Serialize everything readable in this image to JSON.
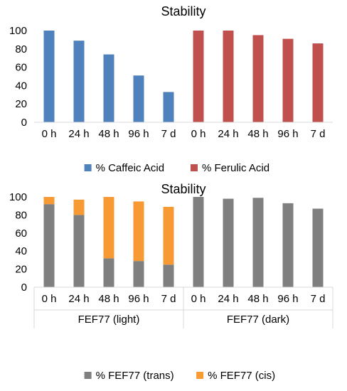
{
  "chart_data": [
    {
      "type": "bar",
      "title": "Stability",
      "categories": [
        "0 h",
        "24 h",
        "48 h",
        "96 h",
        "7 d",
        "0 h",
        "24 h",
        "48 h",
        "96 h",
        "7 d"
      ],
      "series": [
        {
          "name": "% Caffeic Acid",
          "color": "#4f81bd",
          "values": [
            100,
            89,
            74,
            51,
            33,
            null,
            null,
            null,
            null,
            null
          ]
        },
        {
          "name": "% Ferulic Acid",
          "color": "#c0504d",
          "values": [
            null,
            null,
            null,
            null,
            null,
            100,
            100,
            95,
            91,
            86
          ]
        }
      ],
      "ylim": [
        0,
        100
      ],
      "yticks": [
        "0",
        "20",
        "40",
        "60",
        "80",
        "100"
      ],
      "grid": false,
      "legend": "bottom"
    },
    {
      "type": "bar",
      "stacked": true,
      "title": "Stability",
      "categories": [
        "0 h",
        "24 h",
        "48 h",
        "96 h",
        "7 d",
        "0 h",
        "24 h",
        "48 h",
        "96 h",
        "7 d"
      ],
      "groups": [
        {
          "label": "FEF77 (light)",
          "count": 5
        },
        {
          "label": "FEF77 (dark)",
          "count": 5
        }
      ],
      "series": [
        {
          "name": "% FEF77 (trans)",
          "color": "#7f7f7f",
          "values": [
            92,
            80,
            32,
            29,
            25,
            100,
            98,
            99,
            93,
            87
          ]
        },
        {
          "name": "% FEF77 (cis)",
          "color": "#f79a34",
          "values": [
            8,
            17,
            68,
            66,
            64,
            0,
            0,
            0,
            0,
            0
          ]
        }
      ],
      "ylim": [
        0,
        100
      ],
      "yticks": [
        "0",
        "20",
        "40",
        "60",
        "80",
        "100"
      ],
      "grid": false,
      "legend": "bottom"
    }
  ]
}
